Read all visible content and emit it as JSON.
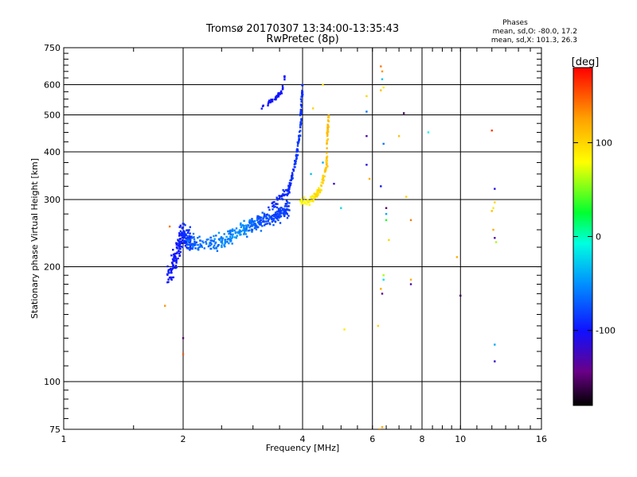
{
  "chart_data": {
    "type": "scatter",
    "title": "Tromsø 20170307 13:34:00-13:35:43",
    "subtitle": "RwPretec (8p)",
    "stats": {
      "heading": "Phases",
      "line1": "mean, sd,O: -80.0, 17.2",
      "line2": "mean, sd,X: 101.3, 26.3"
    },
    "xlabel": "Frequency [MHz]",
    "ylabel": "Stationary phase Virtual Height [km]",
    "x_scale": "log",
    "y_scale": "log",
    "xlim": [
      1,
      16
    ],
    "ylim": [
      75,
      750
    ],
    "x_ticks": [
      1,
      2,
      4,
      6,
      8,
      10,
      16
    ],
    "x_tick_labels": [
      "1",
      "2",
      "4",
      "6",
      "8",
      "10",
      "16"
    ],
    "y_ticks": [
      75,
      100,
      200,
      300,
      400,
      500,
      600,
      750
    ],
    "y_tick_labels": [
      "75",
      "100",
      "200",
      "300",
      "400",
      "500",
      "600",
      "750"
    ],
    "grid": true,
    "colorbar": {
      "label": "[deg]",
      "range": [
        -180,
        180
      ],
      "ticks": [
        100,
        0,
        -100
      ],
      "tick_labels": [
        "100",
        "0",
        "-100"
      ],
      "colormap": "rainbow"
    },
    "traces": [
      {
        "kind": "band",
        "points": [
          [
            1.84,
            185,
            -95
          ],
          [
            1.92,
            215,
            -100
          ],
          [
            2.0,
            245,
            -90
          ],
          [
            2.1,
            232,
            -85
          ]
        ],
        "spread": 0.018,
        "height_spread": 0.1,
        "count": 190,
        "phase_sd": 12
      },
      {
        "kind": "band",
        "points": [
          [
            2.05,
            230,
            -70
          ],
          [
            2.4,
            230,
            -60
          ],
          [
            2.8,
            248,
            -50
          ],
          [
            3.1,
            262,
            -75
          ],
          [
            3.4,
            272,
            -80
          ],
          [
            3.7,
            285,
            -85
          ]
        ],
        "spread": 0.012,
        "height_spread": 0.07,
        "count": 380,
        "phase_sd": 18
      },
      {
        "kind": "band",
        "points": [
          [
            3.35,
            290,
            -90
          ],
          [
            3.7,
            320,
            -90
          ],
          [
            3.85,
            380,
            -85
          ],
          [
            3.95,
            460,
            -85
          ],
          [
            4.0,
            620,
            -90
          ]
        ],
        "spread": 0.006,
        "height_spread": 0.04,
        "count": 160,
        "phase_sd": 10
      },
      {
        "kind": "band",
        "points": [
          [
            3.15,
            520,
            -100
          ],
          [
            3.4,
            550,
            -100
          ],
          [
            3.55,
            575,
            -100
          ],
          [
            3.62,
            640,
            -100
          ]
        ],
        "spread": 0.006,
        "height_spread": 0.02,
        "count": 40,
        "phase_sd": 8
      },
      {
        "kind": "band",
        "points": [
          [
            3.95,
            295,
            80
          ],
          [
            4.25,
            300,
            90
          ],
          [
            4.45,
            320,
            100
          ],
          [
            4.6,
            370,
            105
          ],
          [
            4.62,
            440,
            110
          ],
          [
            4.65,
            500,
            115
          ]
        ],
        "spread": 0.006,
        "height_spread": 0.03,
        "count": 130,
        "phase_sd": 15
      }
    ],
    "points": [
      [
        2.0,
        130,
        -150
      ],
      [
        2.0,
        118,
        150
      ],
      [
        1.85,
        255,
        140
      ],
      [
        1.8,
        158,
        130
      ],
      [
        4.5,
        375,
        -40
      ],
      [
        4.2,
        350,
        -30
      ],
      [
        4.8,
        330,
        -120
      ],
      [
        4.5,
        600,
        90
      ],
      [
        4.25,
        520,
        100
      ],
      [
        5.0,
        285,
        -20
      ],
      [
        5.1,
        137,
        90
      ],
      [
        5.8,
        560,
        100
      ],
      [
        5.8,
        510,
        -60
      ],
      [
        5.8,
        440,
        -130
      ],
      [
        5.8,
        370,
        -110
      ],
      [
        5.9,
        340,
        120
      ],
      [
        6.3,
        670,
        140
      ],
      [
        6.35,
        650,
        130
      ],
      [
        6.35,
        620,
        -30
      ],
      [
        6.3,
        580,
        110
      ],
      [
        6.4,
        590,
        90
      ],
      [
        6.4,
        420,
        -60
      ],
      [
        6.3,
        325,
        -100
      ],
      [
        6.5,
        285,
        -150
      ],
      [
        6.5,
        275,
        -40
      ],
      [
        6.5,
        265,
        30
      ],
      [
        6.6,
        235,
        100
      ],
      [
        6.4,
        190,
        60
      ],
      [
        6.4,
        185,
        -20
      ],
      [
        6.3,
        175,
        120
      ],
      [
        6.35,
        170,
        -140
      ],
      [
        6.2,
        140,
        100
      ],
      [
        6.25,
        75,
        130
      ],
      [
        6.35,
        76,
        120
      ],
      [
        7.0,
        440,
        110
      ],
      [
        7.2,
        505,
        -160
      ],
      [
        7.3,
        305,
        100
      ],
      [
        7.5,
        265,
        140
      ],
      [
        7.5,
        180,
        -130
      ],
      [
        7.5,
        185,
        120
      ],
      [
        8.3,
        450,
        -10
      ],
      [
        9.8,
        212,
        120
      ],
      [
        10.0,
        168,
        -160
      ],
      [
        12.0,
        455,
        160
      ],
      [
        12.2,
        320,
        -110
      ],
      [
        12.2,
        295,
        100
      ],
      [
        12.1,
        285,
        90
      ],
      [
        12.0,
        280,
        110
      ],
      [
        12.1,
        250,
        120
      ],
      [
        12.2,
        238,
        -130
      ],
      [
        12.3,
        232,
        60
      ],
      [
        12.2,
        125,
        -40
      ],
      [
        12.2,
        113,
        -120
      ]
    ]
  }
}
